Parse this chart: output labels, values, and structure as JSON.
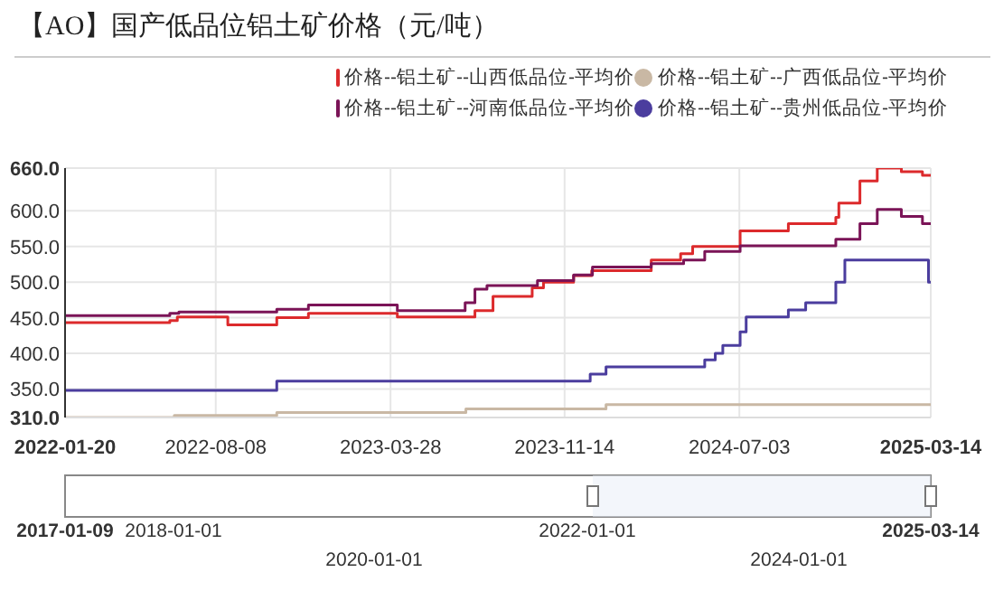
{
  "chart_data": {
    "type": "step",
    "title": "【AO】国产低品位铝土矿价格（元/吨）",
    "legend": "top",
    "grid": true,
    "xlim": [
      "2022-01-20",
      "2025-03-14"
    ],
    "xticks": [
      "2022-01-20",
      "2022-08-08",
      "2023-03-28",
      "2023-11-14",
      "2024-07-03",
      "2025-03-14"
    ],
    "ylim": [
      310,
      660
    ],
    "yticks": [
      {
        "value": 310,
        "label": "310.0"
      },
      {
        "value": 350,
        "label": "350.0"
      },
      {
        "value": 400,
        "label": "400.0"
      },
      {
        "value": 450,
        "label": "450.0"
      },
      {
        "value": 500,
        "label": "500.0"
      },
      {
        "value": 550,
        "label": "550.0"
      },
      {
        "value": 600,
        "label": "600.0"
      },
      {
        "value": 660,
        "label": "660.0"
      }
    ],
    "annotations": [
      "2017-01-09",
      "2018-01-01",
      "2020-01-01",
      "2022-01-01",
      "2024-01-01",
      "2025-03-14"
    ],
    "series": [
      {
        "name": "价格--铝土矿--山西低品位-平均价",
        "color": "#dc2a2c",
        "x": [
          "2022-01-20",
          "2022-06-08",
          "2022-06-18",
          "2022-08-24",
          "2022-10-28",
          "2022-12-09",
          "2023-04-06",
          "2023-07-18",
          "2023-08-11",
          "2023-10-02",
          "2023-10-17",
          "2023-11-26",
          "2023-12-20",
          "2024-03-08",
          "2024-04-16",
          "2024-05-02",
          "2024-07-04",
          "2024-09-06",
          "2024-11-08",
          "2024-11-12",
          "2024-12-10",
          "2025-01-02",
          "2025-02-03",
          "2025-03-03",
          "2025-03-14"
        ],
        "values": [
          443,
          446,
          451,
          440,
          450,
          456,
          451,
          460,
          480,
          492,
          500,
          509,
          516,
          531,
          540,
          550,
          572,
          582,
          591,
          611,
          642,
          660,
          655,
          650,
          650
        ]
      },
      {
        "name": "价格--铝土矿--广西低品位-平均价",
        "color": "#c9b8a4",
        "x": [
          "2022-01-20",
          "2022-06-14",
          "2022-10-28",
          "2023-07-06",
          "2024-01-08",
          "2025-03-14"
        ],
        "values": [
          310,
          313,
          317,
          322,
          328,
          328
        ]
      },
      {
        "name": "价格--铝土矿--河南低品位-平均价",
        "color": "#7b1457",
        "x": [
          "2022-01-20",
          "2022-06-08",
          "2022-06-20",
          "2022-10-28",
          "2022-12-09",
          "2023-04-06",
          "2023-07-05",
          "2023-07-18",
          "2023-08-03",
          "2023-10-09",
          "2023-11-26",
          "2023-12-21",
          "2024-03-08",
          "2024-04-20",
          "2024-05-18",
          "2024-07-04",
          "2024-11-08",
          "2024-12-10",
          "2025-01-02",
          "2025-02-03",
          "2025-03-03",
          "2025-03-14"
        ],
        "values": [
          453,
          456,
          458,
          462,
          468,
          460,
          471,
          490,
          495,
          502,
          510,
          521,
          526,
          531,
          543,
          551,
          560,
          582,
          602,
          592,
          582,
          582
        ]
      },
      {
        "name": "价格--铝土矿--贵州低品位-平均价",
        "color": "#4b3d9e",
        "x": [
          "2022-01-20",
          "2022-10-28",
          "2023-12-18",
          "2024-01-08",
          "2024-05-18",
          "2024-06-01",
          "2024-06-11",
          "2024-07-04",
          "2024-07-12",
          "2024-09-06",
          "2024-09-29",
          "2024-11-08",
          "2024-11-20",
          "2025-03-11",
          "2025-03-14"
        ],
        "values": [
          348,
          361,
          371,
          381,
          391,
          400,
          411,
          430,
          451,
          461,
          471,
          500,
          531,
          500,
          500
        ]
      }
    ]
  }
}
